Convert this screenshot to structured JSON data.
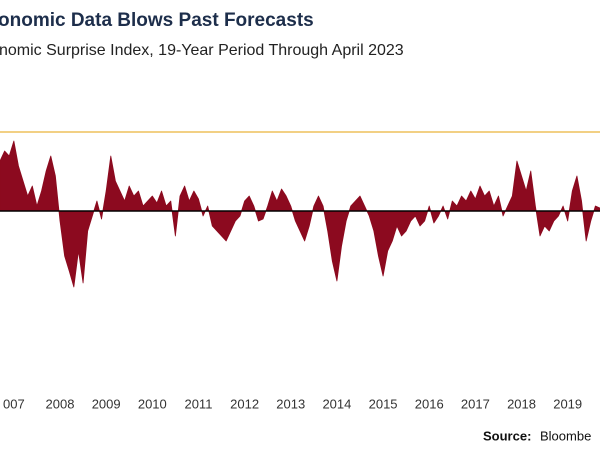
{
  "chart_data": {
    "type": "area",
    "title": "onomic Data Blows Past Forecasts",
    "subtitle": "nomic Surprise Index, 19-Year Period Through April 2023",
    "source_label": "Source:",
    "source": "Bloombe",
    "color": "#8c0a1f",
    "reference_line": {
      "value": 79,
      "color": "#e9b43a"
    },
    "xlim": [
      2006.7,
      2019.7
    ],
    "ylim": [
      -150,
      150
    ],
    "xticks": [
      {
        "value": 2007,
        "label": "007"
      },
      2008,
      2009,
      2010,
      2011,
      2012,
      2013,
      2014,
      2015,
      2016,
      2017,
      2018,
      2019
    ],
    "x": [
      2006.7,
      2006.8,
      2006.9,
      2007.0,
      2007.1,
      2007.2,
      2007.3,
      2007.4,
      2007.5,
      2007.6,
      2007.7,
      2007.8,
      2007.9,
      2008.0,
      2008.1,
      2008.2,
      2008.3,
      2008.4,
      2008.5,
      2008.6,
      2008.7,
      2008.8,
      2008.9,
      2009.0,
      2009.1,
      2009.2,
      2009.3,
      2009.4,
      2009.5,
      2009.6,
      2009.7,
      2009.8,
      2009.9,
      2010.0,
      2010.1,
      2010.2,
      2010.3,
      2010.4,
      2010.5,
      2010.6,
      2010.7,
      2010.8,
      2010.9,
      2011.0,
      2011.1,
      2011.2,
      2011.3,
      2011.4,
      2011.5,
      2011.6,
      2011.7,
      2011.8,
      2011.9,
      2012.0,
      2012.1,
      2012.2,
      2012.3,
      2012.4,
      2012.5,
      2012.6,
      2012.7,
      2012.8,
      2012.9,
      2013.0,
      2013.1,
      2013.2,
      2013.3,
      2013.4,
      2013.5,
      2013.6,
      2013.7,
      2013.8,
      2013.9,
      2014.0,
      2014.1,
      2014.2,
      2014.3,
      2014.4,
      2014.5,
      2014.6,
      2014.7,
      2014.8,
      2014.9,
      2015.0,
      2015.1,
      2015.2,
      2015.3,
      2015.4,
      2015.5,
      2015.6,
      2015.7,
      2015.8,
      2015.9,
      2016.0,
      2016.1,
      2016.2,
      2016.3,
      2016.4,
      2016.5,
      2016.6,
      2016.7,
      2016.8,
      2016.9,
      2017.0,
      2017.1,
      2017.2,
      2017.3,
      2017.4,
      2017.5,
      2017.6,
      2017.7,
      2017.8,
      2017.9,
      2018.0,
      2018.1,
      2018.2,
      2018.3,
      2018.4,
      2018.5,
      2018.6,
      2018.7,
      2018.8,
      2018.9,
      2019.0,
      2019.1,
      2019.2,
      2019.3,
      2019.4,
      2019.5,
      2019.6,
      2019.7
    ],
    "values": [
      50,
      60,
      55,
      70,
      45,
      30,
      15,
      25,
      5,
      20,
      40,
      55,
      35,
      -10,
      -45,
      -60,
      -76,
      -40,
      -72,
      -20,
      -5,
      10,
      -8,
      20,
      55,
      30,
      20,
      10,
      25,
      15,
      20,
      5,
      10,
      15,
      8,
      20,
      5,
      10,
      -25,
      15,
      25,
      10,
      20,
      12,
      -5,
      5,
      -15,
      -20,
      -25,
      -30,
      -20,
      -10,
      -5,
      10,
      15,
      5,
      -10,
      -8,
      5,
      20,
      10,
      22,
      15,
      5,
      -10,
      -20,
      -30,
      -15,
      5,
      15,
      5,
      -20,
      -50,
      -70,
      -35,
      -10,
      5,
      10,
      15,
      5,
      -5,
      -20,
      -45,
      -65,
      -40,
      -30,
      -15,
      -25,
      -20,
      -10,
      -5,
      -15,
      -10,
      5,
      -12,
      -5,
      5,
      -8,
      10,
      5,
      15,
      10,
      20,
      12,
      25,
      15,
      20,
      5,
      15,
      -5,
      5,
      15,
      50,
      35,
      20,
      40,
      5,
      -25,
      -15,
      -20,
      -10,
      -5,
      5,
      -10,
      20,
      35,
      10,
      -30,
      -10,
      5,
      3
    ]
  }
}
